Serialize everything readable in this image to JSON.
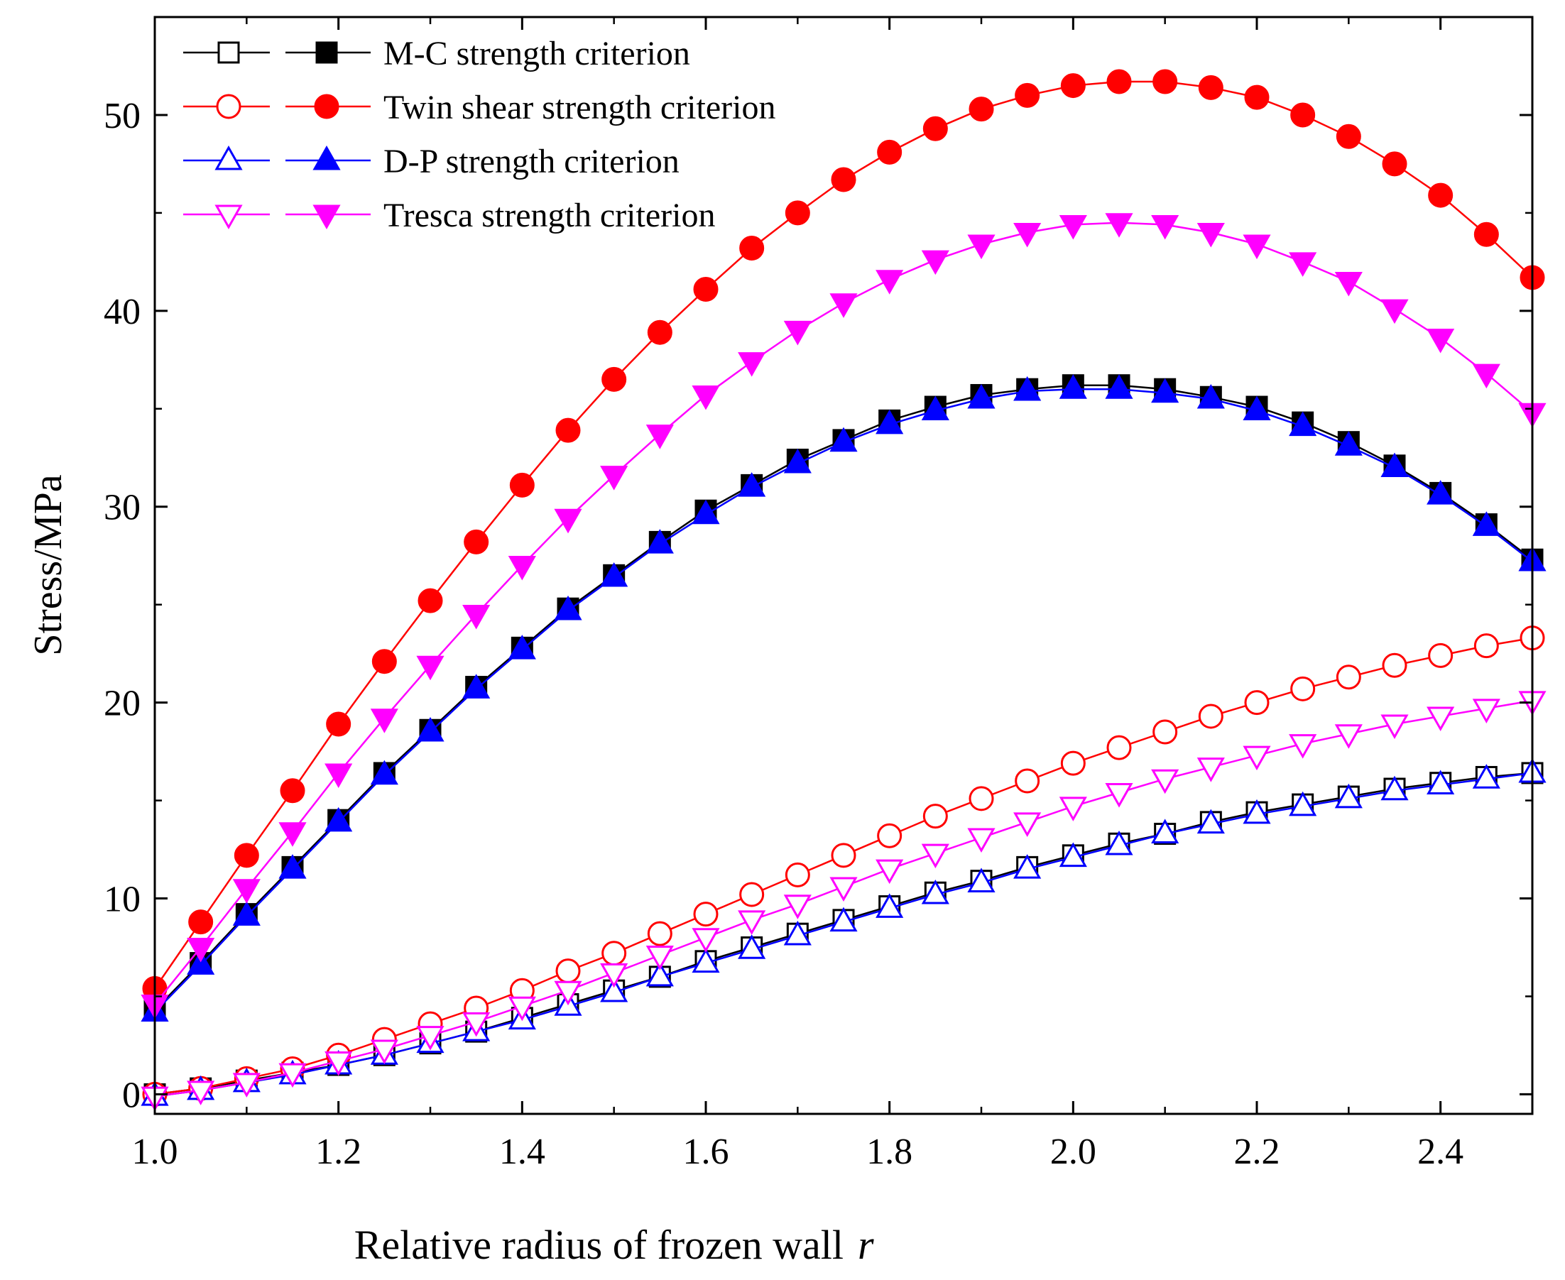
{
  "chart_data": {
    "type": "line",
    "title": "",
    "xlabel": "Relative radius of frozen wall",
    "xlabel_var": "r",
    "ylabel": "Stress/MPa",
    "xlim": [
      1.0,
      2.5
    ],
    "ylim": [
      -1,
      55
    ],
    "xticks": [
      1.0,
      1.2,
      1.4,
      1.6,
      1.8,
      2.0,
      2.2,
      2.4
    ],
    "xtick_labels": [
      "1.0",
      "1.2",
      "1.4",
      "1.6",
      "1.8",
      "2.0",
      "2.2",
      "2.4"
    ],
    "yticks": [
      0,
      10,
      20,
      30,
      40,
      50
    ],
    "ytick_labels": [
      "0",
      "10",
      "20",
      "30",
      "40",
      "50"
    ],
    "grid": false,
    "legend_position": "top-left",
    "x": [
      1.0,
      1.05,
      1.1,
      1.15,
      1.2,
      1.25,
      1.3,
      1.35,
      1.4,
      1.45,
      1.5,
      1.55,
      1.6,
      1.65,
      1.7,
      1.75,
      1.8,
      1.85,
      1.9,
      1.95,
      2.0,
      2.05,
      2.1,
      2.15,
      2.2,
      2.25,
      2.3,
      2.35,
      2.4,
      2.45,
      2.5
    ],
    "series": [
      {
        "name": "M-C strength criterion (hollow)",
        "color": "#000000",
        "marker": "square",
        "filled": false,
        "values": [
          0,
          0.3,
          0.7,
          1.1,
          1.5,
          2.0,
          2.6,
          3.2,
          3.9,
          4.6,
          5.3,
          6.0,
          6.8,
          7.5,
          8.2,
          8.9,
          9.6,
          10.3,
          10.9,
          11.6,
          12.2,
          12.8,
          13.3,
          13.9,
          14.4,
          14.8,
          15.2,
          15.6,
          15.9,
          16.2,
          16.4
        ]
      },
      {
        "name": "M-C strength criterion (solid)",
        "color": "#000000",
        "marker": "square",
        "filled": true,
        "values": [
          4.3,
          6.7,
          9.2,
          11.6,
          14.0,
          16.4,
          18.6,
          20.8,
          22.8,
          24.8,
          26.5,
          28.2,
          29.8,
          31.1,
          32.4,
          33.4,
          34.4,
          35.1,
          35.7,
          36.0,
          36.2,
          36.2,
          36.0,
          35.6,
          35.1,
          34.3,
          33.3,
          32.1,
          30.7,
          29.1,
          27.3
        ]
      },
      {
        "name": "Twin shear strength criterion (hollow)",
        "color": "#ff0000",
        "marker": "circle",
        "filled": false,
        "values": [
          0,
          0.3,
          0.8,
          1.3,
          2.0,
          2.8,
          3.6,
          4.4,
          5.3,
          6.3,
          7.2,
          8.2,
          9.2,
          10.2,
          11.2,
          12.2,
          13.2,
          14.2,
          15.1,
          16.0,
          16.9,
          17.7,
          18.5,
          19.3,
          20.0,
          20.7,
          21.3,
          21.9,
          22.4,
          22.9,
          23.3
        ]
      },
      {
        "name": "Twin shear strength criterion (solid)",
        "color": "#ff0000",
        "marker": "circle",
        "filled": true,
        "values": [
          5.4,
          8.8,
          12.2,
          15.5,
          18.9,
          22.1,
          25.2,
          28.2,
          31.1,
          33.9,
          36.5,
          38.9,
          41.1,
          43.2,
          45.0,
          46.7,
          48.1,
          49.3,
          50.3,
          51.0,
          51.5,
          51.7,
          51.7,
          51.4,
          50.9,
          50.0,
          48.9,
          47.5,
          45.9,
          43.9,
          41.7
        ]
      },
      {
        "name": "D-P strength criterion (hollow)",
        "color": "#0000ff",
        "marker": "triangle-up",
        "filled": false,
        "values": [
          -0.1,
          0.2,
          0.6,
          1.0,
          1.5,
          2.0,
          2.6,
          3.2,
          3.8,
          4.5,
          5.2,
          6.0,
          6.7,
          7.4,
          8.1,
          8.8,
          9.5,
          10.2,
          10.8,
          11.5,
          12.1,
          12.7,
          13.3,
          13.8,
          14.3,
          14.7,
          15.1,
          15.5,
          15.8,
          16.1,
          16.4
        ]
      },
      {
        "name": "D-P strength criterion (solid)",
        "color": "#0000ff",
        "marker": "triangle-up",
        "filled": true,
        "values": [
          4.2,
          6.6,
          9.1,
          11.5,
          13.9,
          16.3,
          18.5,
          20.7,
          22.7,
          24.7,
          26.4,
          28.1,
          29.6,
          31.0,
          32.2,
          33.3,
          34.2,
          34.9,
          35.5,
          35.9,
          36.0,
          36.0,
          35.8,
          35.5,
          34.9,
          34.1,
          33.1,
          32.0,
          30.6,
          29.0,
          27.2
        ]
      },
      {
        "name": "Tresca strength criterion (hollow)",
        "color": "#ff00ff",
        "marker": "triangle-down",
        "filled": false,
        "values": [
          -0.1,
          0.2,
          0.6,
          1.1,
          1.7,
          2.3,
          3.0,
          3.7,
          4.5,
          5.3,
          6.2,
          7.1,
          8.0,
          8.9,
          9.7,
          10.6,
          11.5,
          12.3,
          13.1,
          13.9,
          14.7,
          15.4,
          16.1,
          16.7,
          17.3,
          17.9,
          18.4,
          18.9,
          19.3,
          19.7,
          20.1
        ]
      },
      {
        "name": "Tresca strength criterion (solid)",
        "color": "#ff00ff",
        "marker": "triangle-down",
        "filled": true,
        "values": [
          4.6,
          7.5,
          10.5,
          13.4,
          16.4,
          19.2,
          21.9,
          24.5,
          27.0,
          29.4,
          31.6,
          33.7,
          35.7,
          37.4,
          39.0,
          40.4,
          41.6,
          42.6,
          43.4,
          44.0,
          44.4,
          44.5,
          44.4,
          44.0,
          43.4,
          42.5,
          41.5,
          40.1,
          38.6,
          36.8,
          34.8
        ]
      }
    ],
    "legend": [
      {
        "label": "M-C strength criterion",
        "color": "#000000",
        "marker": "square"
      },
      {
        "label": "Twin shear strength criterion",
        "color": "#ff0000",
        "marker": "circle"
      },
      {
        "label": "D-P strength criterion",
        "color": "#0000ff",
        "marker": "triangle-up"
      },
      {
        "label": "Tresca strength criterion",
        "color": "#ff00ff",
        "marker": "triangle-down"
      }
    ]
  }
}
